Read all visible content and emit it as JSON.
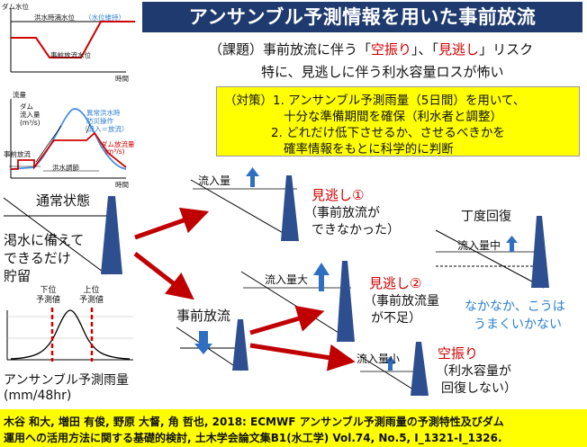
{
  "title": "アンサンブル予測情報を用いた事前放流",
  "issue": {
    "line1_prefix": "（課題）事前放流に伴う「",
    "line1_red1": "空振り",
    "line1_mid": "」、「",
    "line1_red2": "見逃し",
    "line1_suffix": "」リスク",
    "line2": "特に、見逃しに伴う利水容量ロスが怖い"
  },
  "strategy": {
    "line1": "（対策）1. アンサンブル予測雨量（5日間）を用いて、",
    "line2": "十分な準備期間を確保（利水者と調整）",
    "line3": "2. どれだけ低下させるか、させるべきかを",
    "line4": "確率情報をもとに科学的に判断"
  },
  "chart_top": {
    "ylabel": "ダム水位",
    "flood_level": "洪水時満水位",
    "maintain": "（水位維持）",
    "release_level": "事前放流水位",
    "xlabel": "時間"
  },
  "chart_mid": {
    "ylabel": "流量",
    "dam_inflow": "ダム\n流入量\n(m³/s)",
    "abnormal_line1": "異常洪水時",
    "abnormal_line2": "防災操作",
    "abnormal_line3": "（流入＝放流）",
    "dam_outflow_line1": "ダム放流量",
    "dam_outflow_line2": "(m³/s)",
    "prerelease": "事前放流",
    "flood_control": "洪水調節",
    "xlabel": "時間"
  },
  "chart_bottom": {
    "lower": "下位\n予測値",
    "upper": "上位\n予測値",
    "caption1": "アンサンブル予測雨量",
    "caption2": "(mm/48hr)"
  },
  "states": {
    "normal": "通常状態",
    "drought_line1": "渇水に備えて",
    "drought_line2": "できるだけ",
    "drought_line3": "貯留",
    "prerelease": "事前放流",
    "inflow": "流入量",
    "inflow_large": "流入量大",
    "inflow_small": "流入量小",
    "inflow_mid": "流入量中",
    "miss1_title": "見逃し①",
    "miss1_line1": "（事前放流が",
    "miss1_line2": "できなかった）",
    "miss2_title": "見逃し②",
    "miss2_line1": "（事前放流量",
    "miss2_line2": "が不足）",
    "false_title": "空振り",
    "false_line1": "（利水容量が",
    "false_line2": "回復しない）",
    "recovery": "丁度回復",
    "hard_line1": "なかなか、こうは",
    "hard_line2": "うまくいかない"
  },
  "reference": {
    "line1": "木谷 和大, 増田 有俊, 野原 大督, 角 哲也, 2018: ECMWF アンサンブル予測雨量の予測特性及びダム",
    "line2": "運用への活用方法に関する基礎的検討, 土木学会論文集B1(水工学) Vol.74, No.5, I_1321-I_1326."
  },
  "colors": {
    "title_bg": "#1f3a6e",
    "accent_red": "#d00000",
    "dam_blue": "#2e4f8f",
    "highlight": "#ffff00",
    "note_blue": "#2b7fd0"
  }
}
